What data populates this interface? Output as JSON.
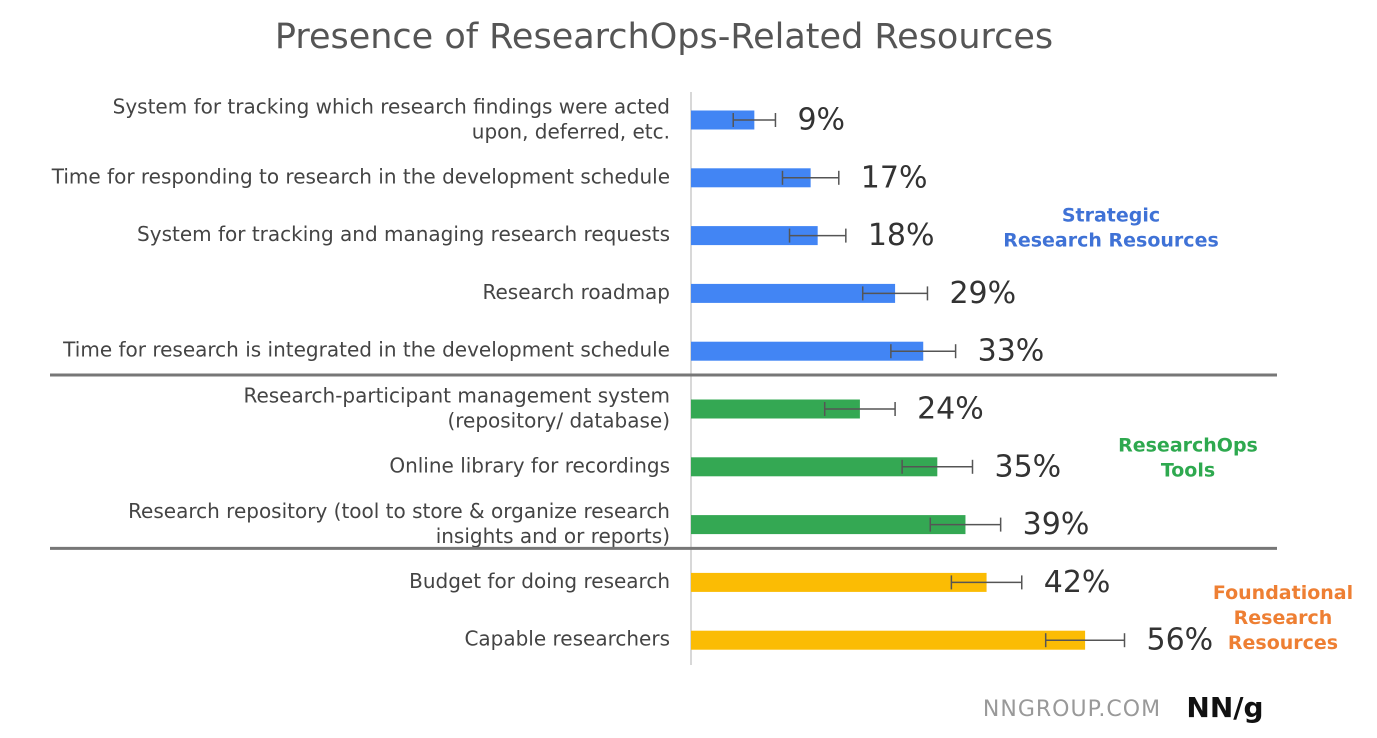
{
  "chart_data": {
    "type": "bar",
    "orientation": "horizontal",
    "title": "Presence of ResearchOps-Related Resources",
    "xlim": [
      0,
      80
    ],
    "series": [
      {
        "name": "Strategic\nResearch Resources",
        "color": "#4285f4",
        "label_color": "#3f72d6",
        "categories": [
          "System for tracking which research findings were acted\nupon, deferred, etc.",
          "Time for responding to research in the development schedule",
          "System for tracking and managing research requests",
          "Research roadmap",
          "Time for research is integrated in the development schedule"
        ],
        "values": [
          9,
          17,
          18,
          29,
          33
        ],
        "errors": [
          3,
          4,
          4,
          4.6,
          4.6
        ],
        "value_labels": [
          "9%",
          "17%",
          "18%",
          "29%",
          "33%"
        ]
      },
      {
        "name": "ResearchOps\nTools",
        "color": "#34a853",
        "label_color": "#2ea94f",
        "categories": [
          "Research-participant management system\n(repository/ database)",
          "Online library for recordings",
          "Research repository (tool to store & organize research\ninsights and or reports)"
        ],
        "values": [
          24,
          35,
          39
        ],
        "errors": [
          5,
          5,
          5
        ],
        "value_labels": [
          "24%",
          "35%",
          "39%"
        ]
      },
      {
        "name": "Foundational\nResearch\nResources",
        "color": "#fbbc04",
        "label_color": "#ee7f33",
        "categories": [
          "Budget for doing research",
          "Capable researchers"
        ],
        "values": [
          42,
          56
        ],
        "errors": [
          5,
          5.6
        ],
        "value_labels": [
          "42%",
          "56%"
        ]
      }
    ],
    "source": "NNGROUP.COM",
    "logo": "NN/g"
  }
}
